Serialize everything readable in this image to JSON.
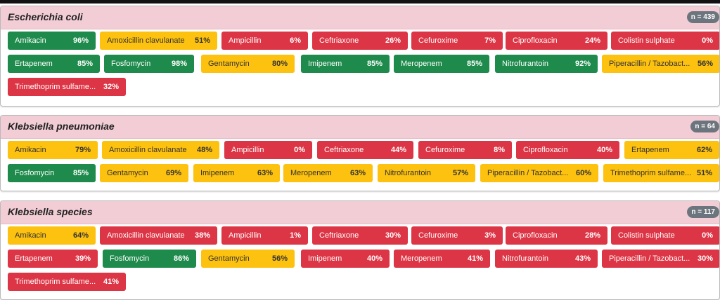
{
  "panels": [
    {
      "title": "Escherichia coli",
      "n": "n = 439",
      "items": [
        {
          "name": "Amikacin",
          "pct": "96%",
          "color": "green"
        },
        {
          "name": "Amoxicillin clavulanate",
          "pct": "51%",
          "color": "yellow"
        },
        {
          "name": "Ampicillin",
          "pct": "6%",
          "color": "red"
        },
        {
          "name": "Ceftriaxone",
          "pct": "26%",
          "color": "red"
        },
        {
          "name": "Cefuroxime",
          "pct": "7%",
          "color": "red"
        },
        {
          "name": "Ciprofloxacin",
          "pct": "24%",
          "color": "red"
        },
        {
          "name": "Colistin sulphate",
          "pct": "0%",
          "color": "red"
        },
        {
          "name": "Ertapenem",
          "pct": "85%",
          "color": "green"
        },
        {
          "name": "Fosfomycin",
          "pct": "98%",
          "color": "green"
        },
        {
          "name": "Gentamycin",
          "pct": "80%",
          "color": "yellow"
        },
        {
          "name": "Imipenem",
          "pct": "85%",
          "color": "green"
        },
        {
          "name": "Meropenem",
          "pct": "85%",
          "color": "green"
        },
        {
          "name": "Nitrofurantoin",
          "pct": "92%",
          "color": "green"
        },
        {
          "name": "Piperacillin / Tazobact...",
          "pct": "56%",
          "color": "yellow"
        },
        {
          "name": "Trimethoprim sulfame...",
          "pct": "32%",
          "color": "red"
        }
      ]
    },
    {
      "title": "Klebsiella pneumoniae",
      "n": "n = 64",
      "items": [
        {
          "name": "Amikacin",
          "pct": "79%",
          "color": "yellow"
        },
        {
          "name": "Amoxicillin clavulanate",
          "pct": "48%",
          "color": "yellow"
        },
        {
          "name": "Ampicillin",
          "pct": "0%",
          "color": "red"
        },
        {
          "name": "Ceftriaxone",
          "pct": "44%",
          "color": "red"
        },
        {
          "name": "Cefuroxime",
          "pct": "8%",
          "color": "red"
        },
        {
          "name": "Ciprofloxacin",
          "pct": "40%",
          "color": "red"
        },
        {
          "name": "Ertapenem",
          "pct": "62%",
          "color": "yellow"
        },
        {
          "name": "Fosfomycin",
          "pct": "85%",
          "color": "green"
        },
        {
          "name": "Gentamycin",
          "pct": "69%",
          "color": "yellow"
        },
        {
          "name": "Imipenem",
          "pct": "63%",
          "color": "yellow"
        },
        {
          "name": "Meropenem",
          "pct": "63%",
          "color": "yellow"
        },
        {
          "name": "Nitrofurantoin",
          "pct": "57%",
          "color": "yellow"
        },
        {
          "name": "Piperacillin / Tazobact...",
          "pct": "60%",
          "color": "yellow"
        },
        {
          "name": "Trimethoprim sulfame...",
          "pct": "51%",
          "color": "yellow"
        }
      ]
    },
    {
      "title": "Klebsiella species",
      "n": "n = 117",
      "items": [
        {
          "name": "Amikacin",
          "pct": "64%",
          "color": "yellow"
        },
        {
          "name": "Amoxicillin clavulanate",
          "pct": "38%",
          "color": "red"
        },
        {
          "name": "Ampicillin",
          "pct": "1%",
          "color": "red"
        },
        {
          "name": "Ceftriaxone",
          "pct": "30%",
          "color": "red"
        },
        {
          "name": "Cefuroxime",
          "pct": "3%",
          "color": "red"
        },
        {
          "name": "Ciprofloxacin",
          "pct": "28%",
          "color": "red"
        },
        {
          "name": "Colistin sulphate",
          "pct": "0%",
          "color": "red"
        },
        {
          "name": "Ertapenem",
          "pct": "39%",
          "color": "red"
        },
        {
          "name": "Fosfomycin",
          "pct": "86%",
          "color": "green"
        },
        {
          "name": "Gentamycin",
          "pct": "56%",
          "color": "yellow"
        },
        {
          "name": "Imipenem",
          "pct": "40%",
          "color": "red"
        },
        {
          "name": "Meropenem",
          "pct": "41%",
          "color": "red"
        },
        {
          "name": "Nitrofurantoin",
          "pct": "43%",
          "color": "red"
        },
        {
          "name": "Piperacillin / Tazobact...",
          "pct": "30%",
          "color": "red"
        },
        {
          "name": "Trimethoprim sulfame...",
          "pct": "41%",
          "color": "red"
        }
      ]
    }
  ]
}
